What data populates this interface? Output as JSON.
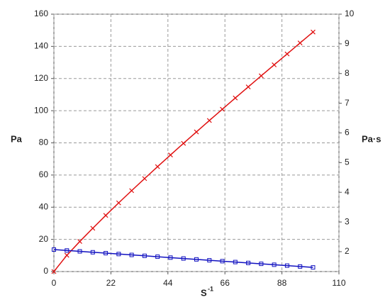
{
  "chart_data": {
    "type": "line",
    "ylabel": "Pa",
    "y2label": "Pa·s",
    "xlabel": "S",
    "xlabel_exponent": "-1",
    "x": [
      0,
      5,
      10,
      15,
      20,
      25,
      30,
      35,
      40,
      45,
      50,
      55,
      60,
      65,
      70,
      75,
      80,
      85,
      90,
      95,
      100
    ],
    "series": [
      {
        "color": "#e01010",
        "marker": "cross",
        "values": [
          0,
          10.1,
          18.7,
          26.9,
          34.9,
          42.7,
          50.3,
          57.8,
          65.2,
          72.5,
          79.7,
          86.8,
          93.9,
          100.9,
          107.9,
          114.8,
          121.7,
          128.5,
          135.3,
          142.1,
          148.9
        ]
      },
      {
        "color": "#1010c0",
        "marker": "square",
        "axis": "y2",
        "values": [
          2.07,
          2.04,
          2.01,
          1.98,
          1.95,
          1.92,
          1.89,
          1.86,
          1.83,
          1.8,
          1.77,
          1.74,
          1.71,
          1.68,
          1.65,
          1.62,
          1.59,
          1.56,
          1.53,
          1.5,
          1.47
        ]
      }
    ],
    "xlim": [
      0,
      110
    ],
    "xticks": [
      0,
      22,
      44,
      66,
      88,
      110
    ],
    "ylim": [
      0,
      160
    ],
    "yticks": [
      0,
      20,
      40,
      60,
      80,
      100,
      120,
      140,
      160
    ],
    "y2lim": [
      1.33,
      10
    ],
    "y2ticks": [
      2,
      3,
      4,
      5,
      6,
      7,
      8,
      9,
      10
    ],
    "grid": true
  }
}
